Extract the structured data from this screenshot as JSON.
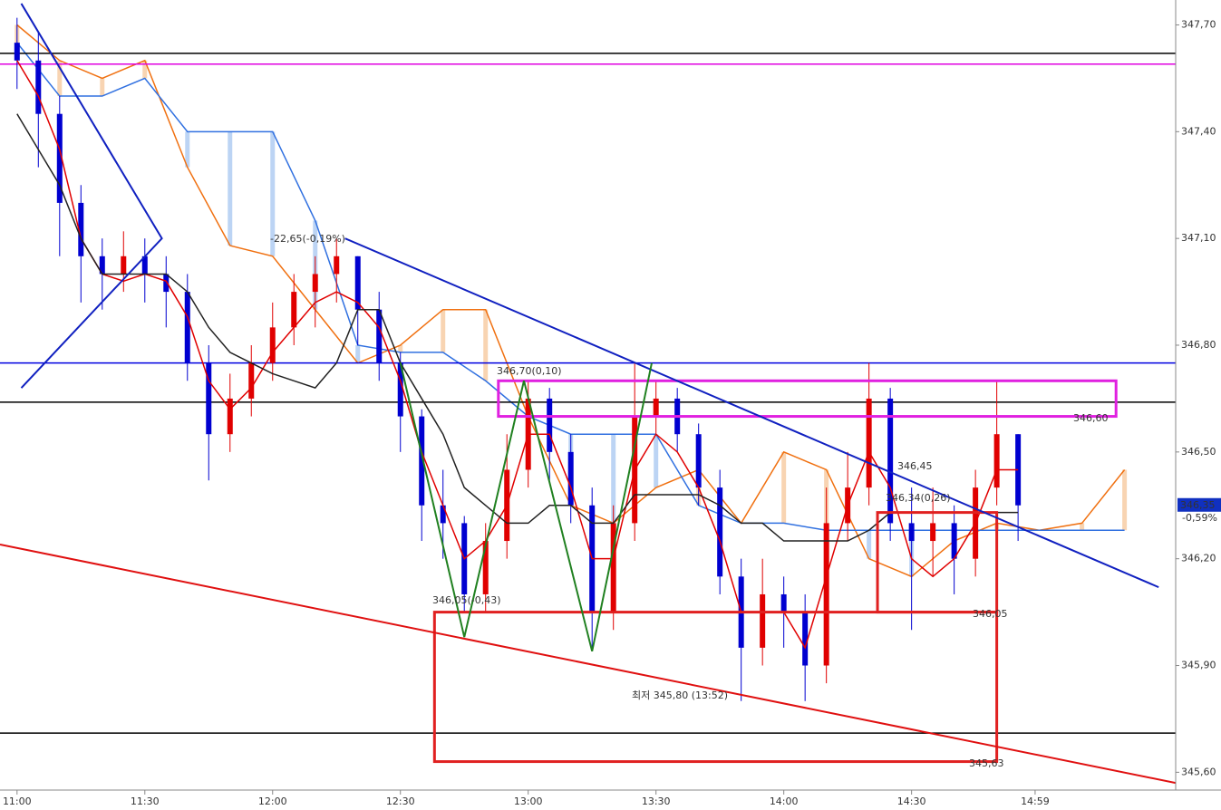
{
  "chart_data": {
    "type": "candlestick",
    "up_color": "#e00000",
    "down_color": "#0000d0",
    "ylim": [
      345.55,
      347.77
    ],
    "yticks": [
      {
        "value": 347.7,
        "label": "347,70"
      },
      {
        "value": 347.4,
        "label": "347,40"
      },
      {
        "value": 347.1,
        "label": "347,10"
      },
      {
        "value": 346.8,
        "label": "346,80"
      },
      {
        "value": 346.5,
        "label": "346,50"
      },
      {
        "value": 346.2,
        "label": "346,20"
      },
      {
        "value": 345.9,
        "label": "345,90"
      },
      {
        "value": 345.6,
        "label": "345,60"
      }
    ],
    "xlim": [
      "10:56",
      "15:32"
    ],
    "xticks": [
      "11:00",
      "11:30",
      "12:00",
      "12:30",
      "13:00",
      "13:30",
      "14:00",
      "14:30",
      "14:59"
    ],
    "x": [
      "11:00",
      "11:05",
      "11:10",
      "11:15",
      "11:20",
      "11:25",
      "11:30",
      "11:35",
      "11:40",
      "11:45",
      "11:50",
      "11:55",
      "12:00",
      "12:05",
      "12:10",
      "12:15",
      "12:20",
      "12:25",
      "12:30",
      "12:35",
      "12:40",
      "12:45",
      "12:50",
      "12:55",
      "13:00",
      "13:05",
      "13:10",
      "13:15",
      "13:20",
      "13:25",
      "13:30",
      "13:35",
      "13:40",
      "13:45",
      "13:50",
      "13:55",
      "14:00",
      "14:05",
      "14:10",
      "14:15",
      "14:20",
      "14:25",
      "14:30",
      "14:35",
      "14:40",
      "14:45",
      "14:50",
      "14:55"
    ],
    "open": [
      347.65,
      347.6,
      347.45,
      347.2,
      347.05,
      347.0,
      347.05,
      347.0,
      346.95,
      346.75,
      346.55,
      346.65,
      346.75,
      346.85,
      346.95,
      347.0,
      347.05,
      346.9,
      346.75,
      346.6,
      346.35,
      346.3,
      346.1,
      346.25,
      346.45,
      346.65,
      346.5,
      346.35,
      346.05,
      346.3,
      346.6,
      346.65,
      346.55,
      346.4,
      346.15,
      345.95,
      346.1,
      346.05,
      345.9,
      346.3,
      346.4,
      346.65,
      346.3,
      346.25,
      346.3,
      346.2,
      346.4,
      346.55
    ],
    "high": [
      347.72,
      347.68,
      347.5,
      347.25,
      347.1,
      347.12,
      347.1,
      347.05,
      347.0,
      346.8,
      346.72,
      346.8,
      346.92,
      347.0,
      347.05,
      347.1,
      347.05,
      346.95,
      346.78,
      346.62,
      346.45,
      346.32,
      346.3,
      346.55,
      346.7,
      346.68,
      346.55,
      346.4,
      346.35,
      346.75,
      346.7,
      346.68,
      346.58,
      346.45,
      346.2,
      346.2,
      346.15,
      346.1,
      346.4,
      346.5,
      346.75,
      346.68,
      346.4,
      346.4,
      346.35,
      346.45,
      346.7,
      346.55
    ],
    "low": [
      347.52,
      347.3,
      347.05,
      346.92,
      346.9,
      346.95,
      346.92,
      346.85,
      346.7,
      346.42,
      346.5,
      346.6,
      346.7,
      346.8,
      346.85,
      346.92,
      346.8,
      346.7,
      346.5,
      346.25,
      346.2,
      346.05,
      346.05,
      346.2,
      346.4,
      346.42,
      346.3,
      345.95,
      346.0,
      346.25,
      346.55,
      346.5,
      346.35,
      346.1,
      345.8,
      345.9,
      345.95,
      345.8,
      345.85,
      346.25,
      346.35,
      346.25,
      346.0,
      346.15,
      346.1,
      346.15,
      346.35,
      346.25
    ],
    "close": [
      347.6,
      347.45,
      347.2,
      347.05,
      347.0,
      347.05,
      347.0,
      346.95,
      346.75,
      346.55,
      346.65,
      346.75,
      346.85,
      346.95,
      347.0,
      347.05,
      346.9,
      346.75,
      346.6,
      346.35,
      346.3,
      346.1,
      346.25,
      346.45,
      346.65,
      346.5,
      346.35,
      346.05,
      346.3,
      346.6,
      346.65,
      346.55,
      346.4,
      346.15,
      345.95,
      346.1,
      346.05,
      345.9,
      346.3,
      346.4,
      346.65,
      346.3,
      346.25,
      346.3,
      346.2,
      346.4,
      346.55,
      346.35
    ],
    "series": [
      {
        "color": "#e00000",
        "values": [
          347.6,
          347.5,
          347.35,
          347.1,
          347.0,
          346.98,
          347.0,
          346.98,
          346.88,
          346.7,
          346.62,
          346.68,
          346.78,
          346.85,
          346.92,
          346.95,
          346.92,
          346.85,
          346.7,
          346.5,
          346.35,
          346.2,
          346.25,
          346.35,
          346.55,
          346.55,
          346.4,
          346.2,
          346.2,
          346.45,
          346.55,
          346.5,
          346.4,
          346.25,
          346.05,
          346.05,
          346.05,
          345.95,
          346.15,
          346.35,
          346.5,
          346.4,
          346.2,
          346.15,
          346.2,
          346.3,
          346.45,
          346.45
        ]
      },
      {
        "color": "#222222",
        "values": [
          347.45,
          347.35,
          347.25,
          347.1,
          347.0,
          347.0,
          347.0,
          347.0,
          346.95,
          346.85,
          346.78,
          346.75,
          346.72,
          346.7,
          346.68,
          346.75,
          346.9,
          346.9,
          346.75,
          346.65,
          346.55,
          346.4,
          346.35,
          346.3,
          346.3,
          346.35,
          346.35,
          346.3,
          346.3,
          346.38,
          346.38,
          346.38,
          346.38,
          346.35,
          346.3,
          346.3,
          346.25,
          346.25,
          346.25,
          346.25,
          346.28,
          346.33,
          346.33,
          346.33,
          346.33,
          346.33,
          346.33,
          346.33
        ]
      }
    ],
    "cloud": {
      "x": [
        "11:00",
        "11:10",
        "11:20",
        "11:30",
        "11:40",
        "11:50",
        "12:00",
        "12:10",
        "12:20",
        "12:30",
        "12:40",
        "12:50",
        "13:00",
        "13:10",
        "13:20",
        "13:30",
        "13:40",
        "13:50",
        "14:00",
        "14:10",
        "14:20",
        "14:30",
        "14:40",
        "14:50",
        "15:00",
        "15:10",
        "15:20"
      ],
      "span_a": {
        "color": "#f07010",
        "values": [
          347.7,
          347.6,
          347.55,
          347.6,
          347.3,
          347.08,
          347.05,
          346.9,
          346.75,
          346.8,
          346.9,
          346.9,
          346.6,
          346.35,
          346.3,
          346.4,
          346.45,
          346.3,
          346.5,
          346.45,
          346.2,
          346.15,
          346.25,
          346.3,
          346.28,
          346.3,
          346.45
        ]
      },
      "span_b": {
        "color": "#3070e0",
        "values": [
          347.65,
          347.5,
          347.5,
          347.55,
          347.4,
          347.4,
          347.4,
          347.15,
          346.8,
          346.78,
          346.78,
          346.7,
          346.6,
          346.55,
          346.55,
          346.55,
          346.35,
          346.3,
          346.3,
          346.28,
          346.28,
          346.28,
          346.28,
          346.28,
          346.28,
          346.28,
          346.28
        ]
      }
    },
    "hlines": [
      {
        "y": 347.62,
        "color": "#000000"
      },
      {
        "y": 347.59,
        "color": "#e000e0"
      },
      {
        "y": 346.75,
        "color": "#0000e0"
      },
      {
        "y": 346.64,
        "color": "#000000"
      },
      {
        "y": 345.71,
        "color": "#000000"
      }
    ],
    "drawings": [
      {
        "color": "#1020c0",
        "points": [
          {
            "x": "11:01",
            "y": 347.76
          },
          {
            "x": "11:34",
            "y": 347.1
          },
          {
            "x": "11:01",
            "y": 346.68
          }
        ]
      },
      {
        "color": "#1020c0",
        "points": [
          {
            "x": "12:17",
            "y": 347.1
          },
          {
            "x": "15:28",
            "y": 346.12
          }
        ]
      },
      {
        "color": "#e01010",
        "points": [
          {
            "x": "10:56",
            "y": 346.24
          },
          {
            "x": "15:32",
            "y": 345.57
          }
        ]
      },
      {
        "color": "#208020",
        "points": [
          {
            "x": "12:30",
            "y": 346.75
          },
          {
            "x": "12:45",
            "y": 345.98
          },
          {
            "x": "12:59",
            "y": 346.7
          },
          {
            "x": "13:15",
            "y": 345.94
          },
          {
            "x": "13:29",
            "y": 346.75
          }
        ]
      }
    ],
    "boxes": [
      {
        "color": "#e02020",
        "x": [
          "12:38",
          "14:50"
        ],
        "y": [
          346.05,
          345.63
        ]
      },
      {
        "color": "#e02020",
        "x": [
          "14:22",
          "14:50"
        ],
        "y": [
          346.33,
          346.05
        ]
      },
      {
        "color": "#e020e0",
        "x": [
          "12:53",
          "15:18"
        ],
        "y": [
          346.7,
          346.6
        ]
      }
    ],
    "annotations": [
      {
        "text": "-22,65(-0,19%)",
        "color": "#2030c0"
      },
      {
        "text": "346,70(0,10)",
        "color": "#c020c0"
      },
      {
        "text": "346,60",
        "color": "#c020c0"
      },
      {
        "text": "346,45",
        "color": "#2030c0"
      },
      {
        "text": "346,34(0,26)",
        "color": "#d02020"
      },
      {
        "text": "346,05(-0,43)",
        "color": "#d02020"
      },
      {
        "text": "346,05",
        "color": "#d02020"
      },
      {
        "text": "345,63",
        "color": "#d02020"
      },
      {
        "text": "최저 345,80 (13:52)",
        "color": "#2030c0"
      }
    ],
    "last_label": "346,35",
    "change_label": "-0,59%"
  }
}
